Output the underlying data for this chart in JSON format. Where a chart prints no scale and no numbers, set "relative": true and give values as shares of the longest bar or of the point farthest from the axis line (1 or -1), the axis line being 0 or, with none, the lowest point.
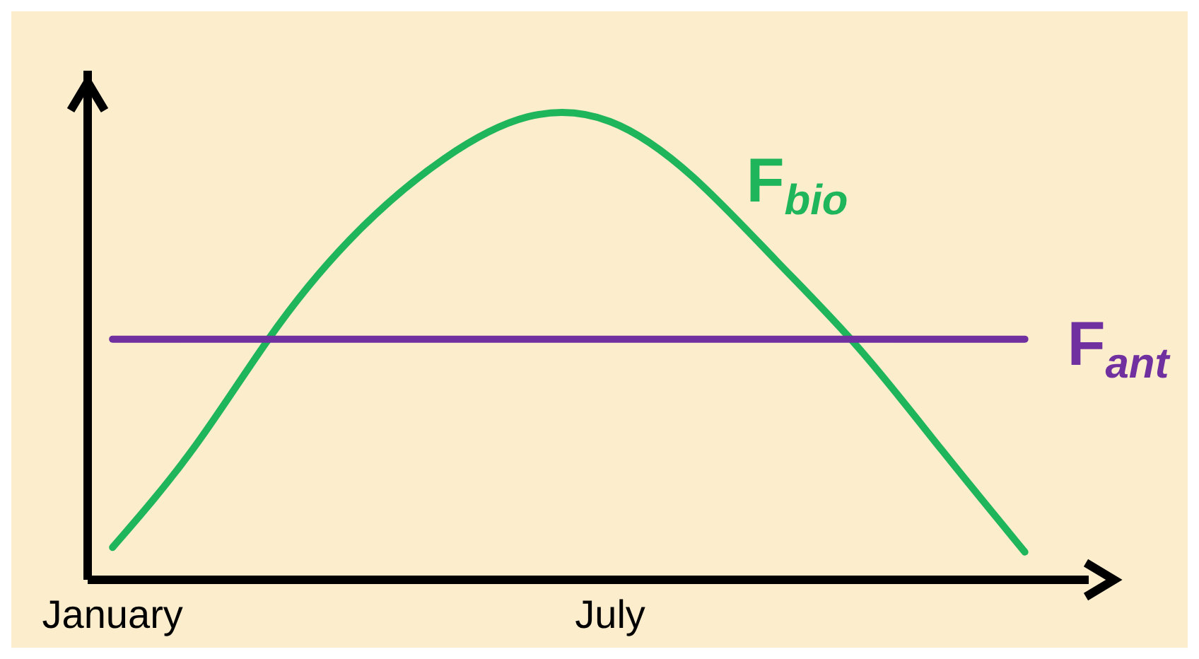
{
  "chart_data": {
    "type": "line",
    "relative": true,
    "categories": [
      "January",
      null,
      null,
      null,
      null,
      null,
      "July",
      null,
      null,
      null,
      null,
      null
    ],
    "series": [
      {
        "name": "F$_{bio}$",
        "color": "#1fb55a",
        "values": [
          0.07,
          0.29,
          0.55,
          0.76,
          0.91,
          1,
          0.99,
          0.87,
          0.69,
          0.5,
          0.28,
          0.06
        ]
      },
      {
        "name": "F$_{ant}$",
        "color": "#7030a0",
        "values": [
          0.52,
          0.52,
          0.52,
          0.52,
          0.52,
          0.52,
          0.52,
          0.52,
          0.52,
          0.52,
          0.52,
          0.52
        ]
      }
    ],
    "grid": false,
    "legend": false,
    "marker": "none",
    "line_style": "solid"
  }
}
